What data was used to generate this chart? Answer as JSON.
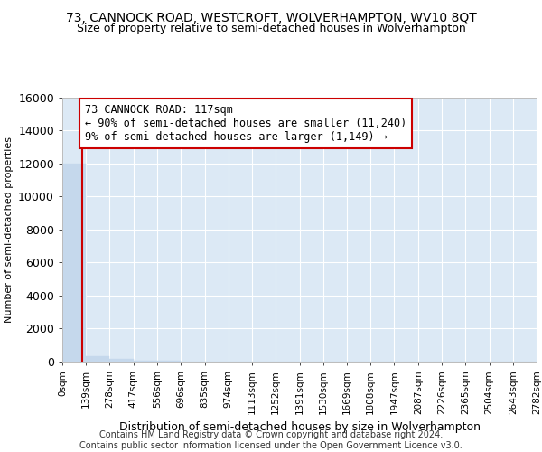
{
  "title": "73, CANNOCK ROAD, WESTCROFT, WOLVERHAMPTON, WV10 8QT",
  "subtitle": "Size of property relative to semi-detached houses in Wolverhampton",
  "xlabel": "Distribution of semi-detached houses by size in Wolverhampton",
  "ylabel": "Number of semi-detached properties",
  "footer_line1": "Contains HM Land Registry data © Crown copyright and database right 2024.",
  "footer_line2": "Contains public sector information licensed under the Open Government Licence v3.0.",
  "annotation_line1": "73 CANNOCK ROAD: 117sqm",
  "annotation_line2": "← 90% of semi-detached houses are smaller (11,240)",
  "annotation_line3": "9% of semi-detached houses are larger (1,149) →",
  "property_size": 117,
  "ylim": [
    0,
    16000
  ],
  "yticks": [
    0,
    2000,
    4000,
    6000,
    8000,
    10000,
    12000,
    14000,
    16000
  ],
  "bar_edges": [
    0,
    139,
    278,
    417,
    556,
    696,
    835,
    974,
    1113,
    1252,
    1391,
    1530,
    1669,
    1808,
    1947,
    2087,
    2226,
    2365,
    2504,
    2643,
    2782
  ],
  "bar_labels": [
    "0sqm",
    "139sqm",
    "278sqm",
    "417sqm",
    "556sqm",
    "696sqm",
    "835sqm",
    "974sqm",
    "1113sqm",
    "1252sqm",
    "1391sqm",
    "1530sqm",
    "1669sqm",
    "1808sqm",
    "1947sqm",
    "2087sqm",
    "2226sqm",
    "2365sqm",
    "2504sqm",
    "2643sqm",
    "2782sqm"
  ],
  "bar_heights": [
    12000,
    350,
    180,
    80,
    45,
    25,
    15,
    10,
    8,
    6,
    5,
    4,
    3,
    2,
    2,
    1,
    1,
    1,
    1,
    0
  ],
  "bar_color": "#c5d8ec",
  "vline_x": 117,
  "vline_color": "#cc0000",
  "annotation_box_edge_color": "#cc0000",
  "background_color": "#ffffff",
  "plot_bg_color": "#dce9f5",
  "grid_color": "#ffffff",
  "title_fontsize": 10,
  "subtitle_fontsize": 9,
  "footer_fontsize": 7,
  "ylabel_fontsize": 8,
  "xlabel_fontsize": 9,
  "ytick_fontsize": 9,
  "xtick_fontsize": 7.5,
  "annotation_fontsize": 8.5
}
